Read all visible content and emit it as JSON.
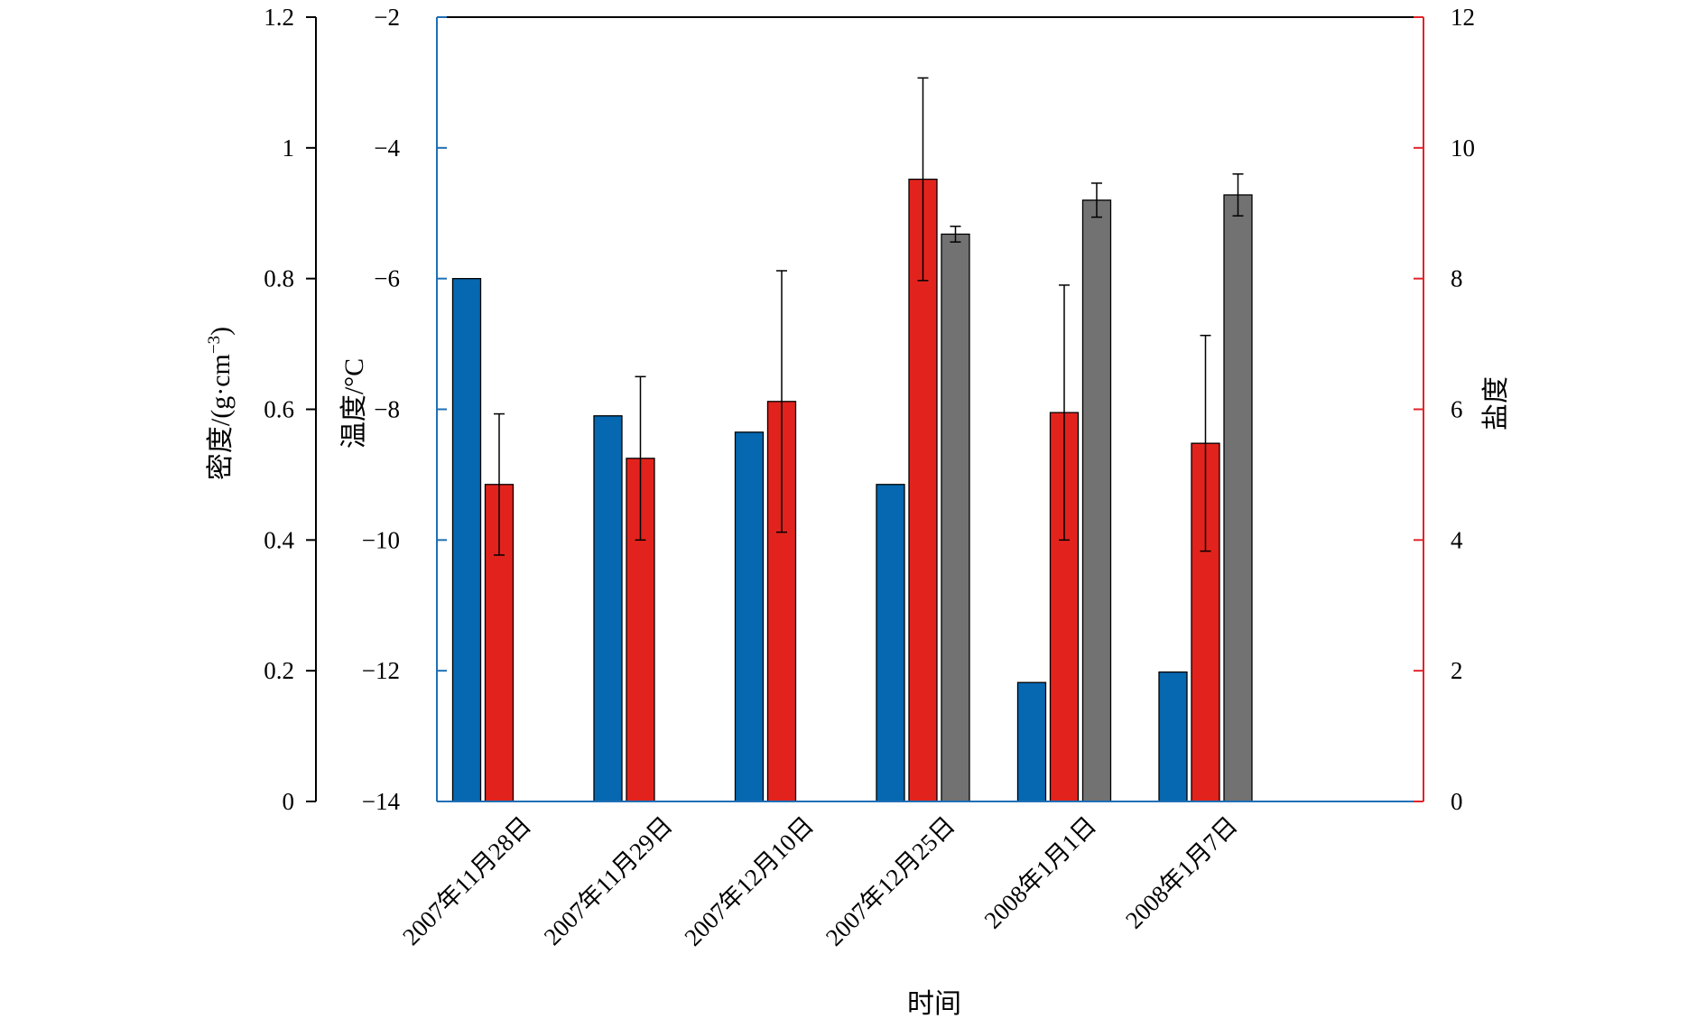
{
  "chart_data": {
    "type": "bar",
    "xlabel": "时间",
    "categories": [
      "2007年11月28日",
      "2007年11月29日",
      "2007年12月10日",
      "2007年12月25日",
      "2008年1月1日",
      "2008年1月7日"
    ],
    "axes": {
      "density": {
        "label": "密度/(g·cm",
        "label_sup": "−3",
        "label_close": ")",
        "range": [
          0,
          1.2
        ],
        "ticks": [
          "0",
          "0.2",
          "0.4",
          "0.6",
          "0.8",
          "1",
          "1.2"
        ],
        "color": "#000000"
      },
      "temperature": {
        "label": "温度/°C",
        "range": [
          -14,
          -2
        ],
        "ticks": [
          "−14",
          "−12",
          "−10",
          "−8",
          "−6",
          "−4",
          "−2"
        ],
        "color": "#1f6fb5"
      },
      "salinity": {
        "label": "盐度",
        "range": [
          0,
          12
        ],
        "ticks": [
          "0",
          "2",
          "4",
          "6",
          "8",
          "10",
          "12"
        ],
        "color": "#e0242a"
      }
    },
    "series": [
      {
        "axis": "temperature",
        "color": "#0568b0",
        "values": [
          -6.0,
          -8.1,
          -8.35,
          -9.15,
          -12.18,
          -12.02
        ],
        "errors": [
          null,
          null,
          null,
          null,
          null,
          null
        ]
      },
      {
        "axis": "salinity",
        "color": "#e2231d",
        "values": [
          4.85,
          5.25,
          6.12,
          9.52,
          5.95,
          5.48
        ],
        "errors": [
          1.08,
          1.25,
          2.0,
          1.55,
          1.95,
          1.65
        ]
      },
      {
        "axis": "density",
        "color": "#727272",
        "values": [
          null,
          null,
          null,
          0.868,
          0.92,
          0.928
        ],
        "errors": [
          null,
          null,
          null,
          0.012,
          0.026,
          0.032
        ]
      }
    ]
  }
}
